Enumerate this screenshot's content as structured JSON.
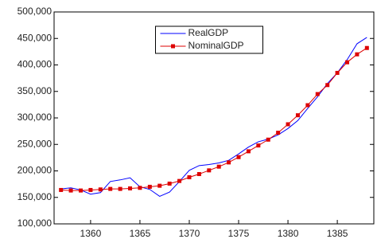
{
  "chart_data": {
    "type": "line",
    "x": [
      1357,
      1358,
      1359,
      1360,
      1361,
      1362,
      1363,
      1364,
      1365,
      1366,
      1367,
      1368,
      1369,
      1370,
      1371,
      1372,
      1373,
      1374,
      1375,
      1376,
      1377,
      1378,
      1379,
      1380,
      1381,
      1382,
      1383,
      1384,
      1385,
      1386,
      1387,
      1388
    ],
    "xlim": [
      1356.3,
      1388.7
    ],
    "xticks": [
      1360,
      1365,
      1370,
      1375,
      1380,
      1385
    ],
    "ylim": [
      100000,
      500000
    ],
    "yticks": [
      {
        "value": 100000,
        "label": "100,000"
      },
      {
        "value": 150000,
        "label": "150,000"
      },
      {
        "value": 200000,
        "label": "200,000"
      },
      {
        "value": 250000,
        "label": "250,000"
      },
      {
        "value": 300000,
        "label": "300,000"
      },
      {
        "value": 350000,
        "label": "350,000"
      },
      {
        "value": 400000,
        "label": "400,000"
      },
      {
        "value": 450000,
        "label": "450,000"
      },
      {
        "value": 500000,
        "label": "500,000"
      }
    ],
    "legend": "top-center",
    "series": [
      {
        "name": "RealGDP",
        "color": "#0000ff",
        "marker": false,
        "values": [
          166000,
          168000,
          164000,
          156000,
          159000,
          180000,
          183000,
          187000,
          170000,
          165000,
          152000,
          160000,
          180000,
          201000,
          210000,
          212000,
          215000,
          220000,
          232000,
          245000,
          255000,
          260000,
          268000,
          280000,
          295000,
          318000,
          340000,
          365000,
          385000,
          410000,
          440000,
          452000
        ]
      },
      {
        "name": "NominalGDP",
        "color": "#dd0000",
        "marker": true,
        "values": [
          164000,
          163000,
          163000,
          164000,
          165000,
          166000,
          166000,
          167000,
          168000,
          170000,
          172000,
          176000,
          181000,
          188000,
          194000,
          201000,
          208000,
          216000,
          226000,
          237000,
          248000,
          259000,
          272000,
          288000,
          305000,
          324000,
          345000,
          362000,
          385000,
          405000,
          420000,
          432000
        ]
      }
    ]
  }
}
